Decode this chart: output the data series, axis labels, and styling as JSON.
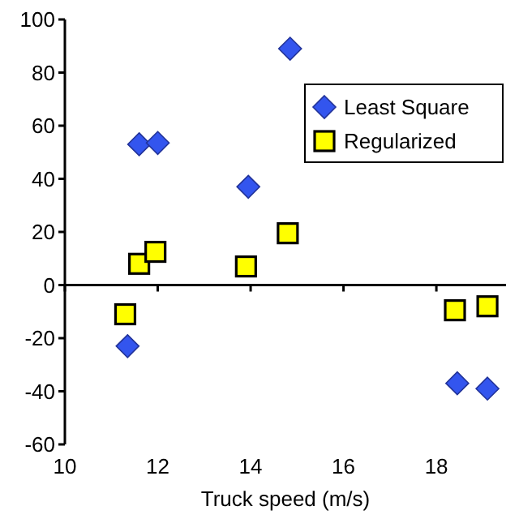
{
  "chart_data": {
    "type": "scatter",
    "xlabel": "Truck speed (m/s)",
    "xlim": [
      10,
      19.5
    ],
    "xticks": [
      10,
      12,
      14,
      16,
      18
    ],
    "ylim": [
      -60,
      100
    ],
    "yticks": [
      -60,
      -40,
      -20,
      0,
      20,
      40,
      60,
      80,
      100
    ],
    "legend": "top right",
    "series": [
      {
        "name": "Least Square",
        "color": "#3355ee",
        "marker": "diamond",
        "x": [
          11.35,
          11.6,
          12.0,
          13.95,
          14.85,
          18.45,
          19.1
        ],
        "values": [
          -23,
          53,
          53.5,
          37,
          89,
          -37,
          -39
        ]
      },
      {
        "name": "Regularized",
        "color": "#ffff00",
        "marker": "square",
        "x": [
          11.3,
          11.6,
          11.95,
          13.9,
          14.8,
          18.4,
          19.1
        ],
        "values": [
          -11,
          8,
          12.5,
          7,
          19.5,
          -9.5,
          -8
        ]
      }
    ]
  }
}
